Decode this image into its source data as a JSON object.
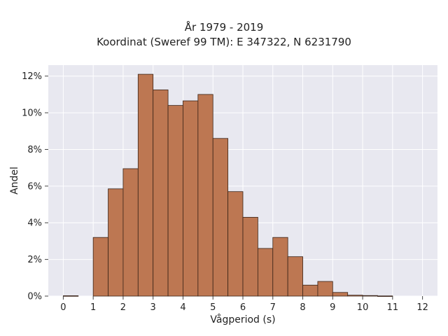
{
  "chart_data": {
    "type": "bar",
    "title": "År 1979 - 2019",
    "subtitle": "Koordinat (Sweref 99 TM): E 347322, N 6231790",
    "xlabel": "Vågperiod (s)",
    "ylabel": "Andel",
    "xlim": [
      -0.5,
      12.5
    ],
    "ylim": [
      0,
      12.6
    ],
    "x_ticks": [
      0,
      1,
      2,
      3,
      4,
      5,
      6,
      7,
      8,
      9,
      10,
      11,
      12
    ],
    "x_tick_labels": [
      "0",
      "1",
      "2",
      "3",
      "4",
      "5",
      "6",
      "7",
      "8",
      "9",
      "10",
      "11",
      "12"
    ],
    "y_ticks": [
      0,
      2,
      4,
      6,
      8,
      10,
      12
    ],
    "y_tick_labels": [
      "0%",
      "2%",
      "4%",
      "6%",
      "8%",
      "10%",
      "12%"
    ],
    "bin_width": 0.5,
    "bins_start": [
      0,
      1,
      1.5,
      2,
      2.5,
      3,
      3.5,
      4,
      4.5,
      5,
      5.5,
      6,
      6.5,
      7,
      7.5,
      8,
      8.5,
      9,
      9.5,
      10,
      10.5
    ],
    "values": [
      0.02,
      3.2,
      5.85,
      6.95,
      12.1,
      11.25,
      10.4,
      10.65,
      11.0,
      8.6,
      5.7,
      4.3,
      2.6,
      3.2,
      2.15,
      0.6,
      0.8,
      0.2,
      0.05,
      0.03,
      0.01
    ],
    "grid": true,
    "colors": {
      "bar_fill": "#bd7752",
      "bar_edge": "#3a2418",
      "plot_background": "#e8e8f0",
      "grid": "#ffffff"
    }
  }
}
